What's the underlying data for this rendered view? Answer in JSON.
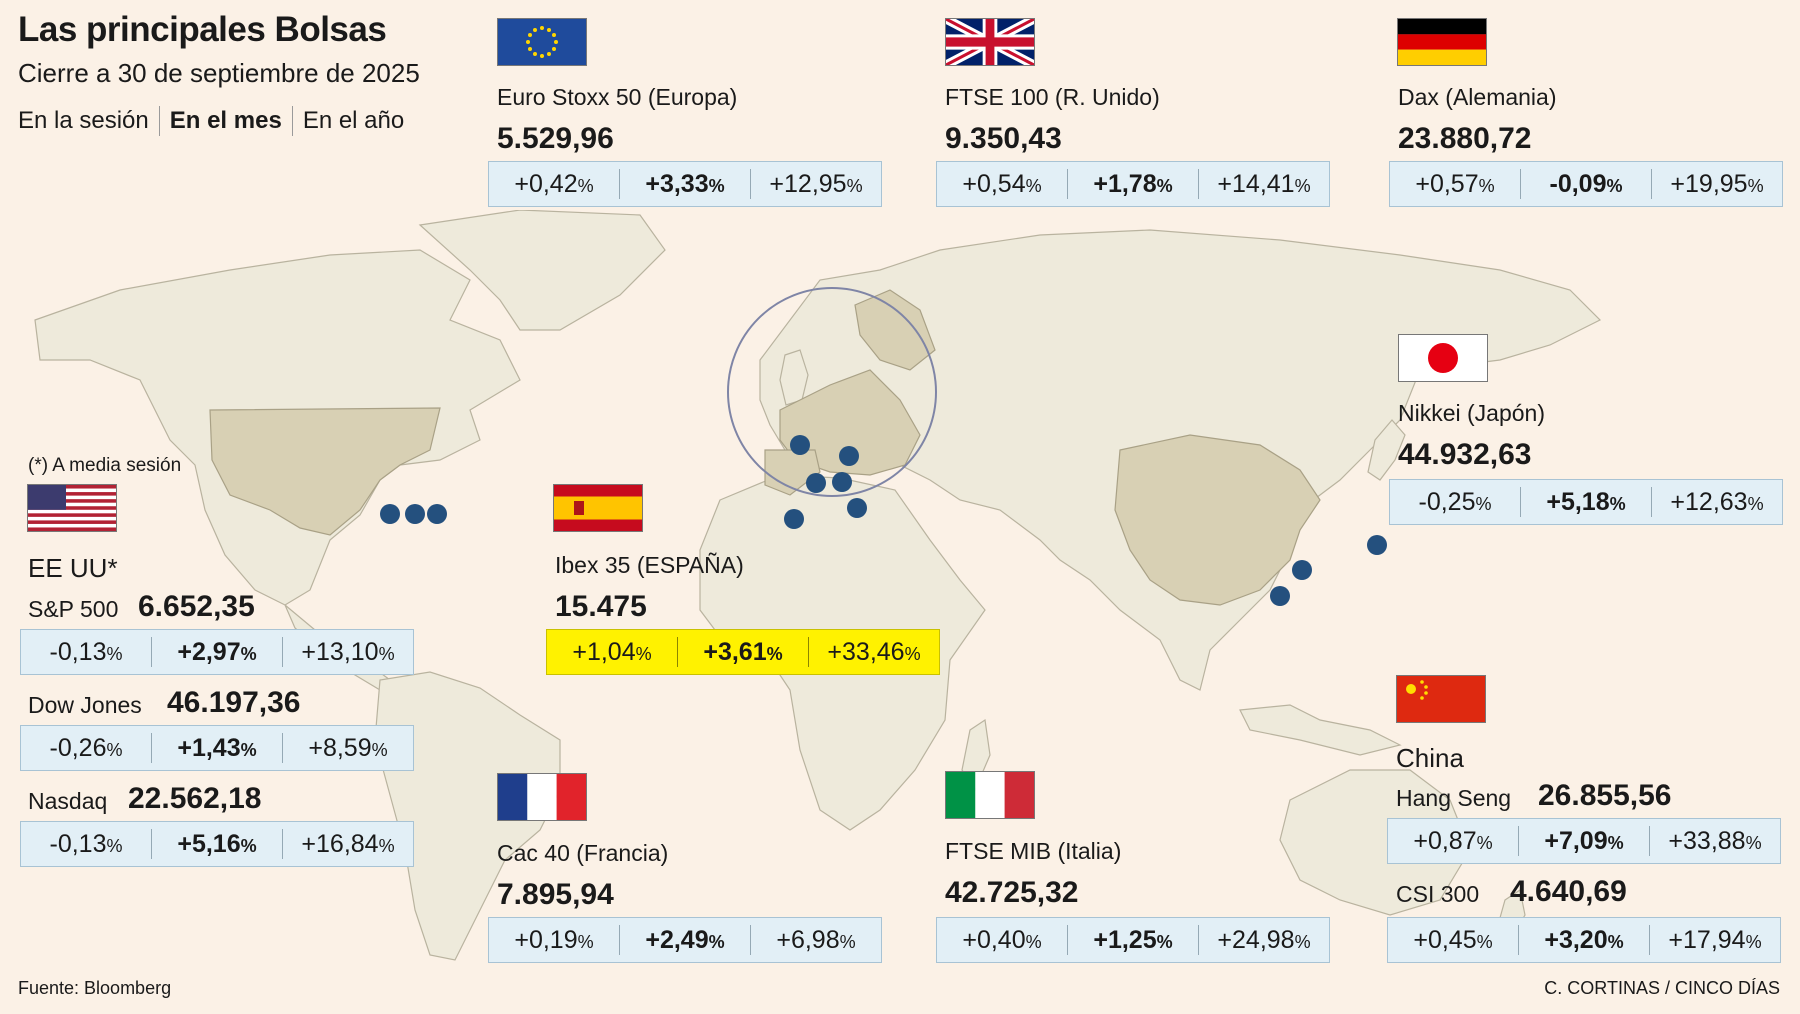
{
  "header": {
    "title": "Las principales Bolsas",
    "subtitle": "Cierre a 30 de septiembre de 2025",
    "tabs": [
      "En la sesión",
      "En el mes",
      "En el año"
    ],
    "active_tab": "En el mes"
  },
  "note": "(*) A media sesión",
  "country_labels": {
    "usa": "EE UU*",
    "china": "China"
  },
  "markets": {
    "eurostoxx": {
      "name": "Euro Stoxx 50 (Europa)",
      "value": "5.529,96",
      "session": "+0,42",
      "month": "+3,33",
      "year": "+12,95",
      "flag": "eu-flag"
    },
    "ftse100": {
      "name": "FTSE 100 (R. Unido)",
      "value": "9.350,43",
      "session": "+0,54",
      "month": "+1,78",
      "year": "+14,41",
      "flag": "uk-flag"
    },
    "dax": {
      "name": "Dax (Alemania)",
      "value": "23.880,72",
      "session": "+0,57",
      "month": "-0,09",
      "year": "+19,95",
      "flag": "germany-flag"
    },
    "nikkei": {
      "name": "Nikkei (Japón)",
      "value": "44.932,63",
      "session": "-0,25",
      "month": "+5,18",
      "year": "+12,63",
      "flag": "japan-flag"
    },
    "ibex": {
      "name": "Ibex 35 (ESPAÑA)",
      "value": "15.475",
      "session": "+1,04",
      "month": "+3,61",
      "year": "+33,46",
      "flag": "spain-flag"
    },
    "sp500": {
      "name": "S&P 500",
      "value": "6.652,35",
      "session": "-0,13",
      "month": "+2,97",
      "year": "+13,10"
    },
    "dowjones": {
      "name": "Dow Jones",
      "value": "46.197,36",
      "session": "-0,26",
      "month": "+1,43",
      "year": "+8,59"
    },
    "nasdaq": {
      "name": "Nasdaq",
      "value": "22.562,18",
      "session": "-0,13",
      "month": "+5,16",
      "year": "+16,84"
    },
    "cac40": {
      "name": "Cac 40 (Francia)",
      "value": "7.895,94",
      "session": "+0,19",
      "month": "+2,49",
      "year": "+6,98",
      "flag": "france-flag"
    },
    "ftsemib": {
      "name": "FTSE MIB (Italia)",
      "value": "42.725,32",
      "session": "+0,40",
      "month": "+1,25",
      "year": "+24,98",
      "flag": "italy-flag"
    },
    "hangseng": {
      "name": "Hang Seng",
      "value": "26.855,56",
      "session": "+0,87",
      "month": "+7,09",
      "year": "+33,88"
    },
    "csi300": {
      "name": "CSI 300",
      "value": "4.640,69",
      "session": "+0,45",
      "month": "+3,20",
      "year": "+17,94"
    }
  },
  "pct_sign": "%",
  "colors": {
    "background": "#fbf1e6",
    "land": "#eeeadb",
    "land_highlight": "#d8d0b4",
    "box": "#e2eff6",
    "box_highlight": "#fff200",
    "marker": "#24507e"
  },
  "footer": {
    "source": "Fuente: Bloomberg",
    "credit": "C. CORTINAS / CINCO DÍAS"
  }
}
